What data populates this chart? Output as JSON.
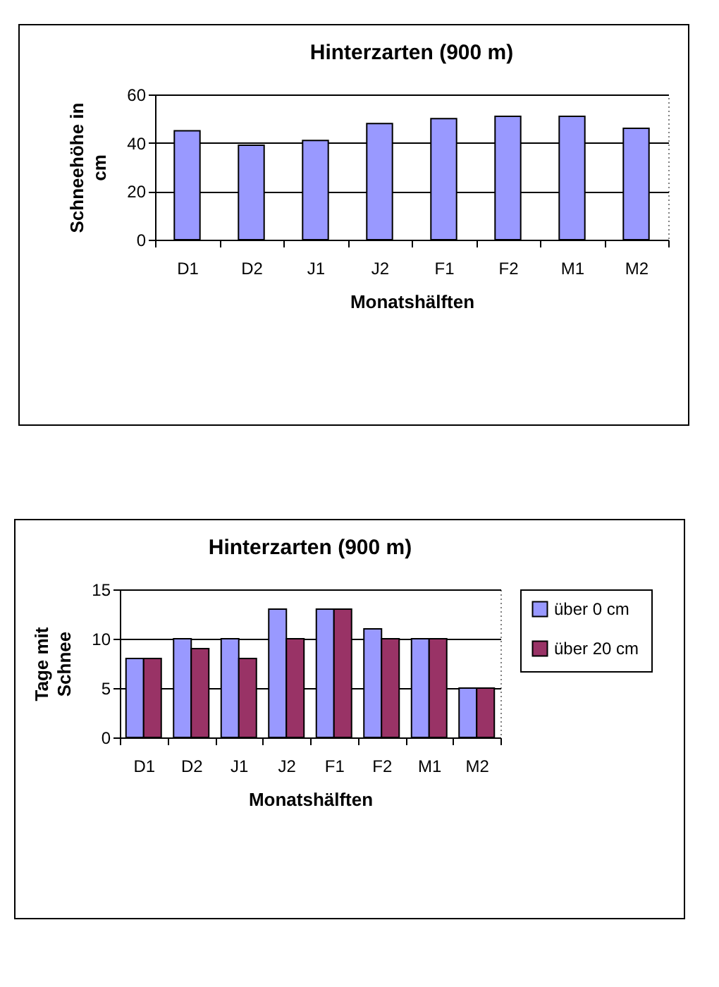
{
  "chart_data": [
    {
      "type": "bar",
      "title": "Hinterzarten (900 m)",
      "xlabel": "Monatshälften",
      "ylabel": "Schneehöhe in cm",
      "categories": [
        "D1",
        "D2",
        "J1",
        "J2",
        "F1",
        "F2",
        "M1",
        "M2"
      ],
      "values": [
        45,
        39,
        41,
        48,
        50,
        51,
        51,
        46
      ],
      "color": "#9999ff",
      "ylim": [
        0,
        60
      ],
      "yticks": [
        0,
        20,
        40,
        60
      ],
      "grid": "y"
    },
    {
      "type": "bar",
      "title": "Hinterzarten (900 m)",
      "xlabel": "Monatshälften",
      "ylabel": "Tage mit Schnee",
      "categories": [
        "D1",
        "D2",
        "J1",
        "J2",
        "F1",
        "F2",
        "M1",
        "M2"
      ],
      "series": [
        {
          "name": "über 0 cm",
          "color": "#9999ff",
          "values": [
            8,
            10,
            10,
            13,
            13,
            11,
            10,
            5
          ]
        },
        {
          "name": "über 20 cm",
          "color": "#993366",
          "values": [
            8,
            9,
            8,
            10,
            13,
            10,
            10,
            5
          ]
        }
      ],
      "ylim": [
        0,
        15
      ],
      "yticks": [
        0,
        5,
        10,
        15
      ],
      "grid": "y",
      "legend": "right"
    }
  ]
}
